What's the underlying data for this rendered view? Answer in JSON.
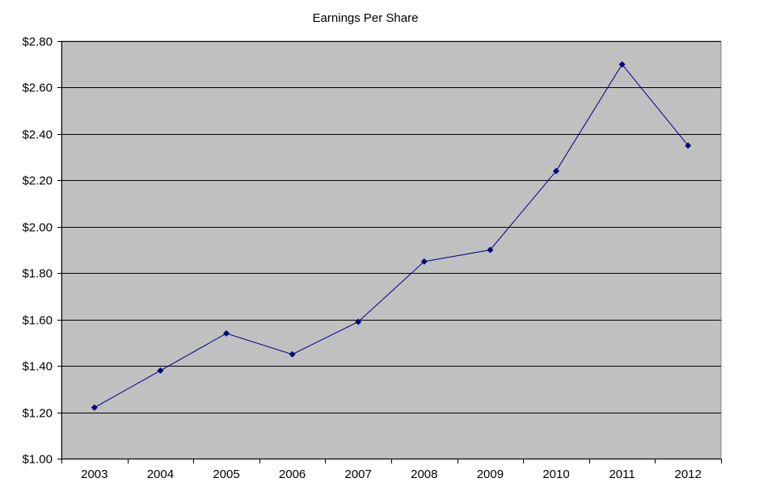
{
  "chart_data": {
    "type": "line",
    "title": "Earnings Per Share",
    "xlabel": "",
    "ylabel": "",
    "categories": [
      "2003",
      "2004",
      "2005",
      "2006",
      "2007",
      "2008",
      "2009",
      "2010",
      "2011",
      "2012"
    ],
    "series": [
      {
        "values": [
          1.22,
          1.38,
          1.54,
          1.45,
          1.59,
          1.85,
          1.9,
          2.24,
          2.7,
          2.35
        ]
      }
    ],
    "ylim": [
      1.0,
      2.8
    ],
    "y_ticks": [
      1.0,
      1.2,
      1.4,
      1.6,
      1.8,
      2.0,
      2.2,
      2.4,
      2.6,
      2.8
    ],
    "y_tick_labels": [
      "$1.00",
      "$1.20",
      "$1.40",
      "$1.60",
      "$1.80",
      "$2.00",
      "$2.20",
      "$2.40",
      "$2.60",
      "$2.80"
    ],
    "grid": true,
    "legend": "none",
    "colors": {
      "plot_background": "#c0c0c0",
      "gridline": "#000000",
      "series_line": "#000080",
      "marker": "#000080"
    }
  }
}
